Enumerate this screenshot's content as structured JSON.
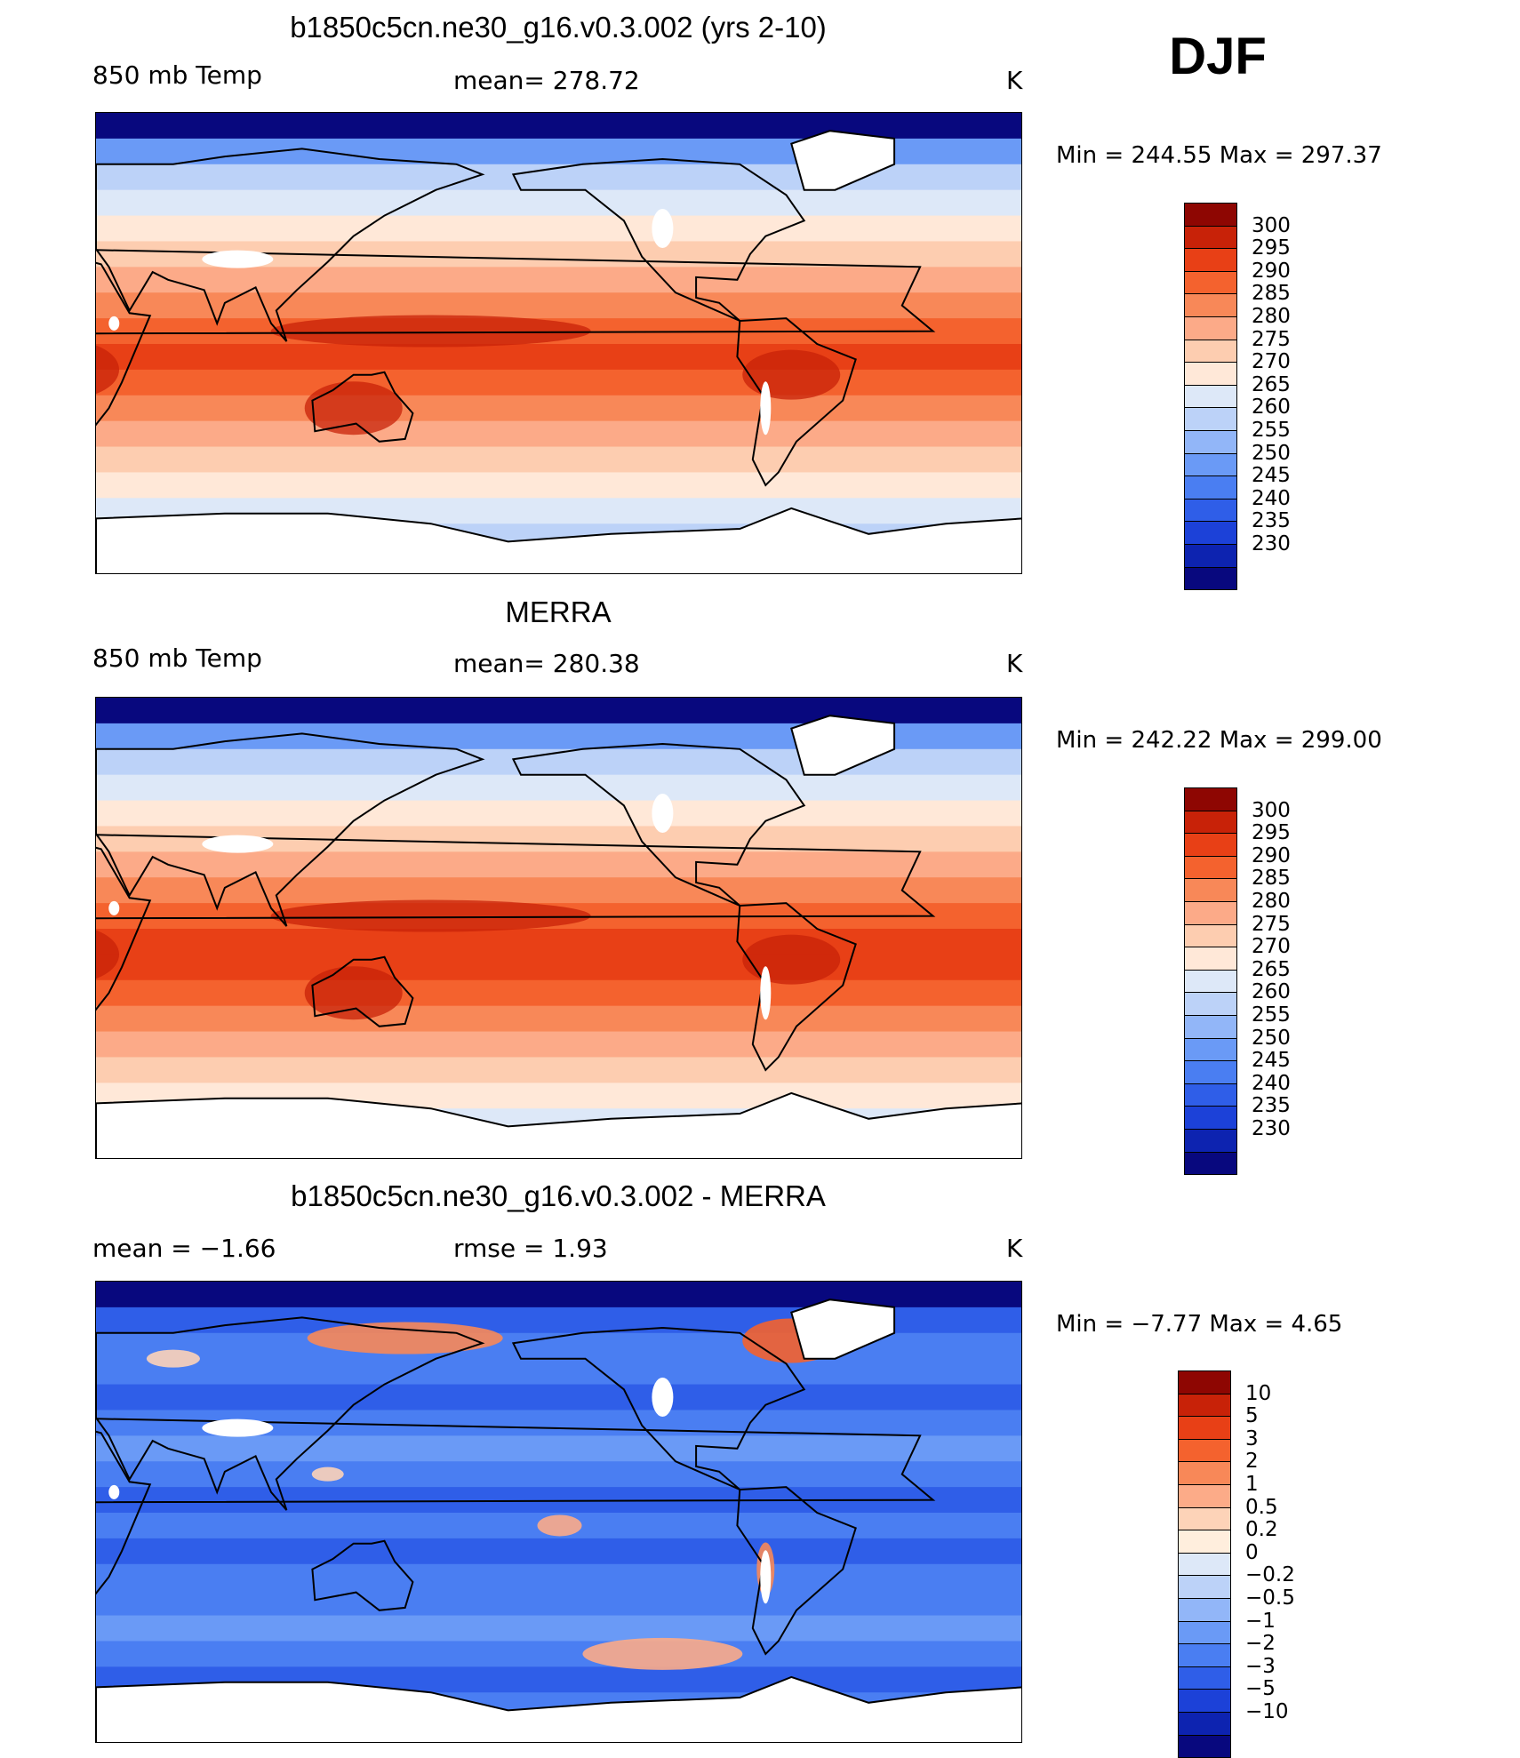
{
  "season": "DJF",
  "units": "K",
  "colors": {
    "temp": [
      "#08087e",
      "#0d23b0",
      "#1c41d8",
      "#2f5ee8",
      "#4a7ef2",
      "#6a9af6",
      "#92b6f8",
      "#bcd2f8",
      "#dde8f8",
      "#ffe8d8",
      "#fdcdb0",
      "#fcaa88",
      "#f88858",
      "#f4622e",
      "#e84016",
      "#c82208",
      "#8e0602"
    ],
    "diff": [
      "#08087e",
      "#0d23b0",
      "#1c41d8",
      "#2f5ee8",
      "#4a7ef2",
      "#6a9af6",
      "#92b6f8",
      "#bcd2f8",
      "#dde8f8",
      "#ffeedd",
      "#fdd3b8",
      "#fcab88",
      "#f88858",
      "#f4622e",
      "#e84016",
      "#c82208",
      "#8e0602"
    ]
  },
  "panels": [
    {
      "id": "model",
      "title": "b1850c5cn.ne30_g16.v0.3.002 (yrs 2-10)",
      "left_label": "850 mb Temp",
      "center_label": "mean= 278.72",
      "right_label": "K",
      "min_max": "Min = 244.55 Max = 297.37",
      "legend_ticks": [
        "300",
        "295",
        "290",
        "285",
        "280",
        "275",
        "270",
        "265",
        "260",
        "255",
        "250",
        "245",
        "240",
        "235",
        "230"
      ],
      "palette": "temp",
      "bands": [
        0,
        5,
        7,
        8,
        9,
        10,
        11,
        12,
        13,
        14,
        13,
        12,
        11,
        10,
        9,
        8,
        7,
        6
      ]
    },
    {
      "id": "obs",
      "title": "MERRA",
      "left_label": "850 mb Temp",
      "center_label": "mean= 280.38",
      "right_label": "K",
      "min_max": "Min = 242.22 Max = 299.00",
      "legend_ticks": [
        "300",
        "295",
        "290",
        "285",
        "280",
        "275",
        "270",
        "265",
        "260",
        "255",
        "250",
        "245",
        "240",
        "235",
        "230"
      ],
      "palette": "temp",
      "bands": [
        0,
        5,
        7,
        8,
        9,
        10,
        11,
        12,
        13,
        14,
        14,
        13,
        12,
        11,
        10,
        9,
        8,
        7
      ]
    },
    {
      "id": "diff",
      "title": "b1850c5cn.ne30_g16.v0.3.002 - MERRA",
      "left_label": "mean =   −1.66",
      "center_label": "rmse =    1.93",
      "right_label": "K",
      "min_max": "Min =   −7.77 Max =    4.65",
      "legend_ticks": [
        "10",
        "5",
        "3",
        "2",
        "1",
        "0.5",
        "0.2",
        "0",
        "−0.2",
        "−0.5",
        "−1",
        "−2",
        "−3",
        "−5",
        "−10"
      ],
      "palette": "diff",
      "bands": [
        0,
        3,
        4,
        4,
        3,
        4,
        5,
        4,
        3,
        4,
        3,
        4,
        4,
        5,
        4,
        3,
        4,
        6
      ]
    }
  ]
}
